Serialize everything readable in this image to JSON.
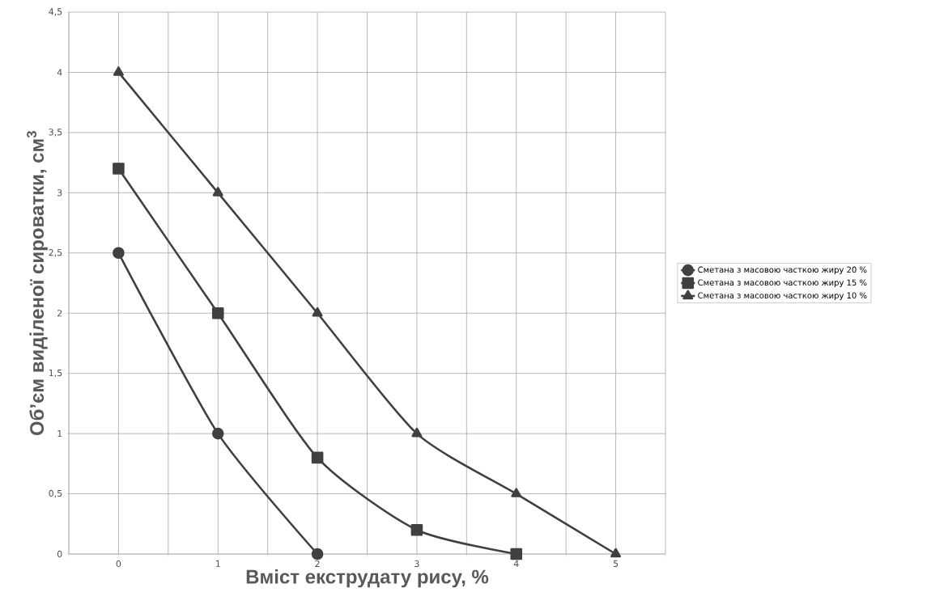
{
  "chart_data": {
    "type": "line",
    "xlabel": "Вміст екструдату рису, %",
    "ylabel": "Об’єм виділеної сироватки, см$^{3}$",
    "xlim": [
      -0.5,
      5.5
    ],
    "xticks": [
      0,
      1,
      2,
      3,
      4,
      5,
      {
        "value": -0.5,
        "label": null
      },
      {
        "value": 0.5,
        "label": null
      },
      {
        "value": 1.5,
        "label": null
      },
      {
        "value": 2.5,
        "label": null
      },
      {
        "value": 3.5,
        "label": null
      },
      {
        "value": 4.5,
        "label": null
      },
      {
        "value": 5.5,
        "label": null
      }
    ],
    "ylim": [
      0,
      4.5
    ],
    "yticks": [
      0,
      {
        "value": 0.5,
        "label": "0,5"
      },
      1,
      {
        "value": 1.5,
        "label": "1,5"
      },
      2,
      {
        "value": 2.5,
        "label": "2,5"
      },
      3,
      {
        "value": 3.5,
        "label": "3,5"
      },
      4,
      {
        "value": 4.5,
        "label": "4,5"
      }
    ],
    "grid": true,
    "legend": "right",
    "series": [
      {
        "name": "Сметана з масовою часткою жиру 20 %",
        "color": "#404040",
        "marker": "circle",
        "x": [
          0,
          1,
          2
        ],
        "values": [
          2.5,
          1,
          0
        ]
      },
      {
        "name": "Сметана з масовою часткою жиру 15 %",
        "color": "#404040",
        "marker": "square",
        "x": [
          0,
          1,
          2,
          3,
          4
        ],
        "values": [
          3.2,
          2,
          0.8,
          0.2,
          0
        ]
      },
      {
        "name": "Сметана з масовою часткою жиру 10 %",
        "color": "#404040",
        "marker": "triangle",
        "x": [
          0,
          1,
          2,
          3,
          4,
          5
        ],
        "values": [
          4,
          3,
          2,
          1,
          0.5,
          0
        ]
      }
    ]
  }
}
